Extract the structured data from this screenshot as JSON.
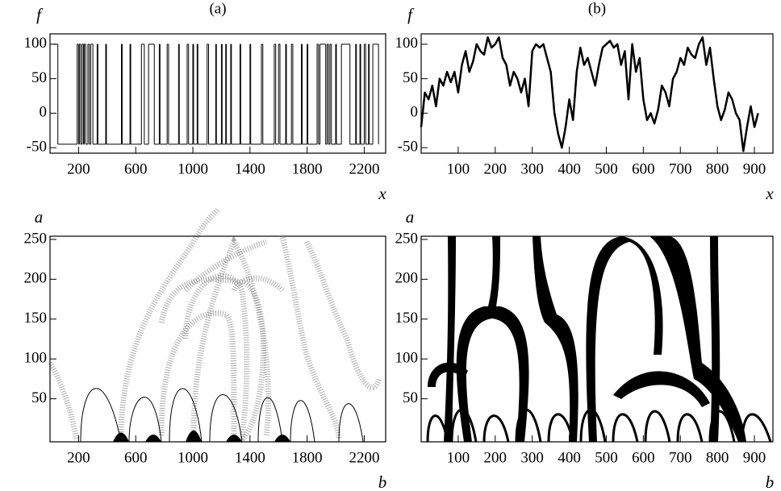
{
  "chart_data": [
    {
      "type": "step",
      "title": "(a)",
      "xlabel": "x",
      "ylabel": "f",
      "x": [
        20,
        55,
        190,
        200,
        205,
        215,
        225,
        235,
        240,
        250,
        265,
        275,
        285,
        300,
        330,
        335,
        390,
        395,
        500,
        505,
        560,
        565,
        640,
        660,
        690,
        730,
        765,
        770,
        820,
        830,
        900,
        905,
        960,
        970,
        1000,
        1005,
        1030,
        1035,
        1100,
        1110,
        1160,
        1165,
        1200,
        1205,
        1230,
        1235,
        1265,
        1270,
        1330,
        1335,
        1400,
        1405,
        1480,
        1490,
        1570,
        1580,
        1600,
        1610,
        1650,
        1655,
        1690,
        1700,
        1760,
        1765,
        1800,
        1805,
        1870,
        1880,
        1890,
        1930,
        1940,
        1950,
        1960,
        1970,
        2000,
        2005,
        2040,
        2100,
        2140,
        2145,
        2170,
        2175,
        2200,
        2210,
        2230,
        2235,
        2260,
        2300
      ],
      "values": [
        100,
        -45,
        100,
        -45,
        100,
        -45,
        100,
        -45,
        100,
        -45,
        100,
        -45,
        100,
        -45,
        100,
        -45,
        100,
        -45,
        100,
        -45,
        100,
        -45,
        100,
        -45,
        100,
        -45,
        100,
        -45,
        100,
        -45,
        100,
        -45,
        100,
        -45,
        100,
        -45,
        100,
        -45,
        100,
        -45,
        100,
        -45,
        100,
        -45,
        100,
        -45,
        100,
        -45,
        100,
        -45,
        100,
        -45,
        100,
        -45,
        100,
        -45,
        100,
        -45,
        100,
        -45,
        100,
        -45,
        100,
        -45,
        100,
        -45,
        100,
        -45,
        100,
        -45,
        100,
        -45,
        100,
        -45,
        100,
        -45,
        100,
        -45,
        100,
        -45,
        100,
        -45,
        100,
        -45,
        100,
        -45,
        100,
        -45
      ],
      "xlim": [
        0,
        2350
      ],
      "ylim": [
        -58,
        115
      ],
      "xticks": [
        200,
        600,
        1000,
        1400,
        1800,
        2200
      ],
      "yticks": [
        -50,
        0,
        50,
        100
      ],
      "color": "#000000"
    },
    {
      "type": "line",
      "title": "(b)",
      "xlabel": "x",
      "ylabel": "f",
      "x": [
        0,
        10,
        20,
        30,
        40,
        50,
        60,
        70,
        80,
        90,
        100,
        110,
        120,
        130,
        140,
        150,
        160,
        170,
        180,
        190,
        200,
        210,
        220,
        230,
        240,
        250,
        260,
        270,
        280,
        290,
        300,
        310,
        320,
        330,
        340,
        350,
        360,
        370,
        380,
        390,
        400,
        410,
        420,
        430,
        440,
        450,
        460,
        470,
        480,
        490,
        500,
        510,
        520,
        530,
        540,
        550,
        560,
        570,
        580,
        590,
        600,
        610,
        620,
        630,
        640,
        650,
        660,
        670,
        680,
        690,
        700,
        710,
        720,
        730,
        740,
        750,
        760,
        770,
        780,
        790,
        800,
        810,
        820,
        830,
        840,
        850,
        860,
        870,
        880,
        890,
        900,
        910
      ],
      "values": [
        -20,
        30,
        20,
        40,
        10,
        50,
        40,
        60,
        45,
        60,
        30,
        70,
        90,
        60,
        75,
        100,
        90,
        85,
        110,
        95,
        100,
        110,
        80,
        70,
        40,
        60,
        50,
        30,
        50,
        10,
        90,
        100,
        95,
        100,
        80,
        60,
        0,
        -30,
        -50,
        -20,
        20,
        -10,
        60,
        95,
        70,
        80,
        60,
        40,
        70,
        95,
        100,
        105,
        95,
        100,
        70,
        90,
        20,
        100,
        60,
        80,
        20,
        -10,
        0,
        -15,
        5,
        40,
        30,
        10,
        50,
        60,
        80,
        70,
        95,
        85,
        80,
        100,
        110,
        70,
        95,
        50,
        10,
        -10,
        5,
        30,
        20,
        0,
        -10,
        -55,
        -20,
        10,
        -20,
        0
      ],
      "xlim": [
        0,
        950
      ],
      "ylim": [
        -58,
        115
      ],
      "xticks": [
        100,
        200,
        300,
        400,
        500,
        600,
        700,
        800,
        900
      ],
      "yticks": [
        -50,
        0,
        50,
        100
      ],
      "color": "#000000"
    },
    {
      "type": "image",
      "xlabel": "b",
      "ylabel": "a",
      "xlim": [
        0,
        2350
      ],
      "ylim": [
        -4,
        254
      ],
      "xticks": [
        200,
        600,
        1000,
        1400,
        1800,
        2200
      ],
      "yticks": [
        50,
        100,
        150,
        200,
        250
      ]
    },
    {
      "type": "image",
      "xlabel": "b",
      "ylabel": "a",
      "xlim": [
        0,
        950
      ],
      "ylim": [
        -4,
        254
      ],
      "xticks": [
        100,
        200,
        300,
        400,
        500,
        600,
        700,
        800,
        900
      ],
      "yticks": [
        50,
        100,
        150,
        200,
        250
      ]
    }
  ]
}
